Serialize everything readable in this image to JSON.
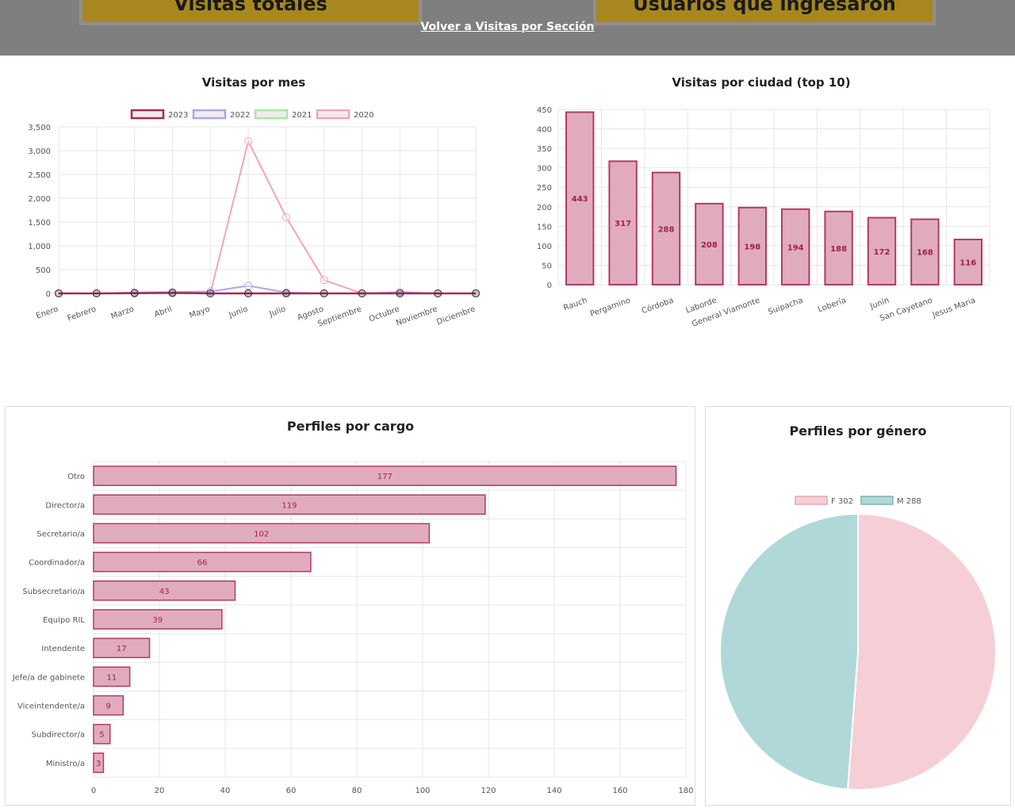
{
  "header": {
    "card_left": "Visitas totales",
    "card_right": "Usuarios que ingresaron",
    "back_link": "Volver a Visitas por Sección"
  },
  "colors": {
    "y2023": "#a52a56",
    "y2022": "#a7a7ee",
    "y2021": "#a8e6a8",
    "y2020": "#f0a8b0",
    "bar_fill": "#e0acbd",
    "bar_stroke": "#b23a64",
    "label": "#a0204f",
    "pie_f": "#f6ced6",
    "pie_m": "#b0d8d8"
  },
  "chart_data": [
    {
      "type": "line",
      "title": "Visitas por mes",
      "categories": [
        "Enero",
        "Febrero",
        "Marzo",
        "Abril",
        "Mayo",
        "Junio",
        "Julio",
        "Agosto",
        "Septiembre",
        "Octubre",
        "Noviembre",
        "Diciembre"
      ],
      "ylim": [
        0,
        3500
      ],
      "yticks": [
        0,
        500,
        1000,
        1500,
        2000,
        2500,
        3000,
        3500
      ],
      "ytick_labels": [
        "0",
        "500",
        "1,000",
        "1,500",
        "2,000",
        "2,500",
        "3,000",
        "3,500"
      ],
      "legend": "top",
      "series": [
        {
          "name": "2023",
          "values": [
            0,
            0,
            5,
            10,
            0,
            0,
            0,
            0,
            0,
            0,
            0,
            0
          ]
        },
        {
          "name": "2022",
          "values": [
            0,
            0,
            20,
            30,
            40,
            160,
            20,
            0,
            0,
            30,
            0,
            0
          ]
        },
        {
          "name": "2021",
          "values": [
            0,
            0,
            0,
            0,
            0,
            0,
            0,
            0,
            0,
            0,
            0,
            0
          ]
        },
        {
          "name": "2020",
          "values": [
            0,
            0,
            0,
            0,
            0,
            3200,
            1600,
            280,
            0,
            0,
            0,
            0
          ]
        }
      ]
    },
    {
      "type": "bar",
      "title": "Visitas por ciudad (top 10)",
      "categories": [
        "Rauch",
        "Pergamino",
        "Córdoba",
        "Laborde",
        "General Viamonte",
        "Suipacha",
        "Lobería",
        "Junín",
        "San Cayetano",
        "Jesus Maria"
      ],
      "values": [
        443,
        317,
        288,
        208,
        198,
        194,
        188,
        172,
        168,
        116
      ],
      "ylim": [
        0,
        450
      ],
      "yticks": [
        0,
        50,
        100,
        150,
        200,
        250,
        300,
        350,
        400,
        450
      ]
    },
    {
      "type": "bar",
      "orientation": "horizontal",
      "title": "Perfiles por cargo",
      "categories": [
        "Otro",
        "Director/a",
        "Secretario/a",
        "Coordinador/a",
        "Subsecretario/a",
        "Equipo RIL",
        "Intendente",
        "Jefe/a de gabinete",
        "Viceintendente/a",
        "Subdirector/a",
        "Ministro/a"
      ],
      "values": [
        177,
        119,
        102,
        66,
        43,
        39,
        17,
        11,
        9,
        5,
        3
      ],
      "xlim": [
        0,
        180
      ],
      "xticks": [
        0,
        20,
        40,
        60,
        80,
        100,
        120,
        140,
        160,
        180
      ]
    },
    {
      "type": "pie",
      "title": "Perfiles por género",
      "labels": [
        "F 302",
        "M 288"
      ],
      "values": [
        302,
        288
      ],
      "legend": "top"
    }
  ]
}
